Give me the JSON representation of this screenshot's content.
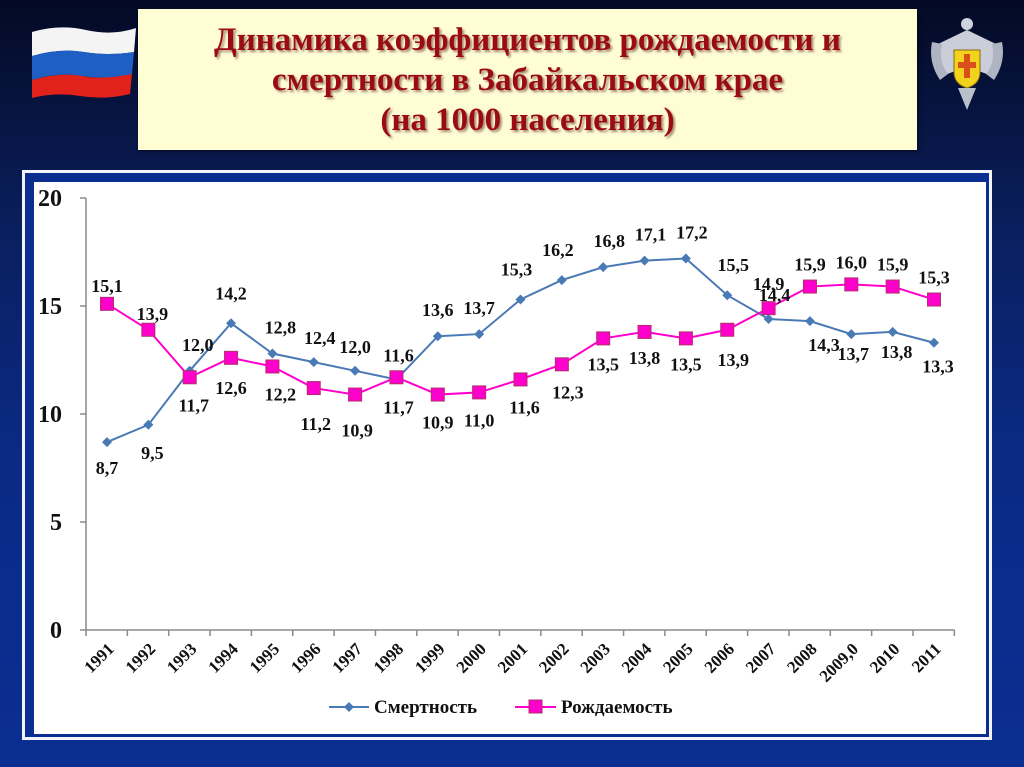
{
  "header": {
    "title_lines": [
      "Динамика коэффициентов рождаемости и",
      "смертности в Забайкальском крае",
      "(на 1000 населения)"
    ],
    "left_icon": "russian-flag-icon",
    "right_icon": "rospotrebnadzor-emblem-icon"
  },
  "colors": {
    "background": "#0a2a85",
    "title_bg": "#fffdd4",
    "title_text": "#9a0b12",
    "mortality": "#4a7ab5",
    "birth": "#ff00cc",
    "birth_marker_border": "#b0306a"
  },
  "chart_data": {
    "type": "line",
    "title": "Динамика коэффициентов рождаемости и смертности в Забайкальском крае (на 1000 населения)",
    "xlabel": "",
    "ylabel": "",
    "ylim": [
      0,
      20
    ],
    "yticks": [
      "0",
      "5",
      "10",
      "15",
      "20"
    ],
    "grid": false,
    "legend_position": "bottom",
    "categories": [
      "1991",
      "1992",
      "1993",
      "1994",
      "1995",
      "1996",
      "1997",
      "1998",
      "1999",
      "2000",
      "2001",
      "2002",
      "2003",
      "2004",
      "2005",
      "2006",
      "2007",
      "2008",
      "2009,0",
      "2010",
      "2011"
    ],
    "series": [
      {
        "name": "Смертность",
        "marker": "diamond",
        "values": [
          8.7,
          9.5,
          12.0,
          14.2,
          12.8,
          12.4,
          12.0,
          11.6,
          13.6,
          13.7,
          15.3,
          16.2,
          16.8,
          17.1,
          17.2,
          15.5,
          14.4,
          14.3,
          13.7,
          13.8,
          13.3
        ],
        "labels": [
          "8,7",
          "9,5",
          "12,0",
          "14,2",
          "12,8",
          "12,4",
          "12,0",
          "11,6",
          "13,6",
          "13,7",
          "15,3",
          "16,2",
          "16,8",
          "17,1",
          "17,2",
          "15,5",
          "14,4",
          "14,3",
          "13,7",
          "13,8",
          "13,3"
        ]
      },
      {
        "name": "Рождаемость",
        "marker": "square",
        "values": [
          15.1,
          13.9,
          11.7,
          12.6,
          12.2,
          11.2,
          10.9,
          11.7,
          10.9,
          11.0,
          11.6,
          12.3,
          13.5,
          13.8,
          13.5,
          13.9,
          14.9,
          15.9,
          16.0,
          15.9,
          15.3
        ],
        "labels": [
          "15,1",
          "13,9",
          "11,7",
          "12,6",
          "12,2",
          "11,2",
          "10,9",
          "11,7",
          "10,9",
          "11,0",
          "11,6",
          "12,3",
          "13,5",
          "13,8",
          "13,5",
          "13,9",
          "14,9",
          "15,9",
          "16,0",
          "15,9",
          "15,3"
        ]
      }
    ]
  }
}
